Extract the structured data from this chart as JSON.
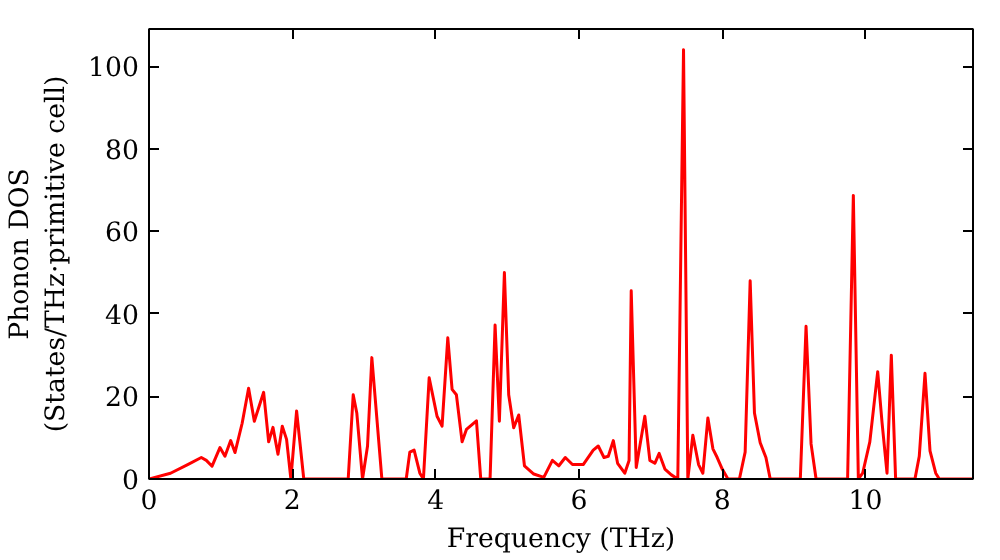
{
  "chart_data": {
    "type": "line",
    "xlabel": "Frequency (THz)",
    "ylabel": "Phonon DOS\n(States/THz·primitive cell)",
    "xlim": [
      0,
      11.5
    ],
    "ylim": [
      0,
      109
    ],
    "xticks": [
      0,
      2,
      4,
      6,
      8,
      10
    ],
    "yticks": [
      0,
      20,
      40,
      60,
      80,
      100
    ],
    "line_style": "solid",
    "series": [
      {
        "color": "#ff0000",
        "x": [
          0,
          0.3,
          0.54,
          0.73,
          0.8,
          0.88,
          0.99,
          1.06,
          1.14,
          1.2,
          1.3,
          1.39,
          1.47,
          1.6,
          1.67,
          1.73,
          1.8,
          1.86,
          1.92,
          1.98,
          2.06,
          2.16,
          2.78,
          2.85,
          2.9,
          2.98,
          3.05,
          3.11,
          3.25,
          3.59,
          3.64,
          3.7,
          3.78,
          3.83,
          3.91,
          4.02,
          4.09,
          4.17,
          4.23,
          4.29,
          4.37,
          4.43,
          4.57,
          4.63,
          4.76,
          4.83,
          4.89,
          4.96,
          5.02,
          5.09,
          5.16,
          5.24,
          5.37,
          5.51,
          5.63,
          5.72,
          5.81,
          5.91,
          6.06,
          6.2,
          6.27,
          6.35,
          6.41,
          6.48,
          6.54,
          6.64,
          6.7,
          6.73,
          6.8,
          6.92,
          6.99,
          7.06,
          7.12,
          7.2,
          7.29,
          7.38,
          7.46,
          7.52,
          7.59,
          7.67,
          7.73,
          7.8,
          7.87,
          7.93,
          8.0,
          8.08,
          8.24,
          8.32,
          8.39,
          8.45,
          8.53,
          8.61,
          8.67,
          9.09,
          9.17,
          9.24,
          9.31,
          9.75,
          9.83,
          9.9,
          9.96,
          10.06,
          10.17,
          10.23,
          10.3,
          10.36,
          10.42,
          10.69,
          10.75,
          10.83,
          10.9,
          10.98,
          11.03,
          11.5
        ],
        "values": [
          0,
          1.4,
          3.5,
          5.2,
          4.5,
          3.1,
          7.6,
          5.5,
          9.3,
          6.4,
          13.5,
          22,
          14,
          21,
          9,
          12.5,
          6,
          12.8,
          9.6,
          0,
          16.5,
          0,
          0,
          20.4,
          16,
          0,
          8,
          29.4,
          0,
          0,
          6.5,
          7,
          1.4,
          0,
          24.5,
          15.2,
          12.8,
          34.2,
          21.7,
          20.4,
          9,
          12,
          14.1,
          0,
          0,
          37.3,
          14,
          50,
          20.4,
          12.4,
          15.5,
          3.2,
          1.2,
          0.4,
          4.5,
          3.2,
          5.2,
          3.5,
          3.5,
          7,
          8,
          5.2,
          5.5,
          9.3,
          3.8,
          1.4,
          4.5,
          45.6,
          2.8,
          15.2,
          4.5,
          3.8,
          6.2,
          2.4,
          1,
          0,
          104,
          0,
          10.6,
          3.5,
          1.4,
          14.8,
          7.3,
          5.2,
          2.4,
          0,
          0,
          6.5,
          48,
          16,
          8.8,
          5.2,
          0,
          0,
          37,
          8.5,
          0,
          0,
          68.7,
          0,
          1.4,
          9,
          26,
          13.8,
          1.4,
          30,
          0,
          0,
          5.5,
          25.6,
          6.8,
          1.4,
          0,
          0
        ]
      }
    ]
  }
}
